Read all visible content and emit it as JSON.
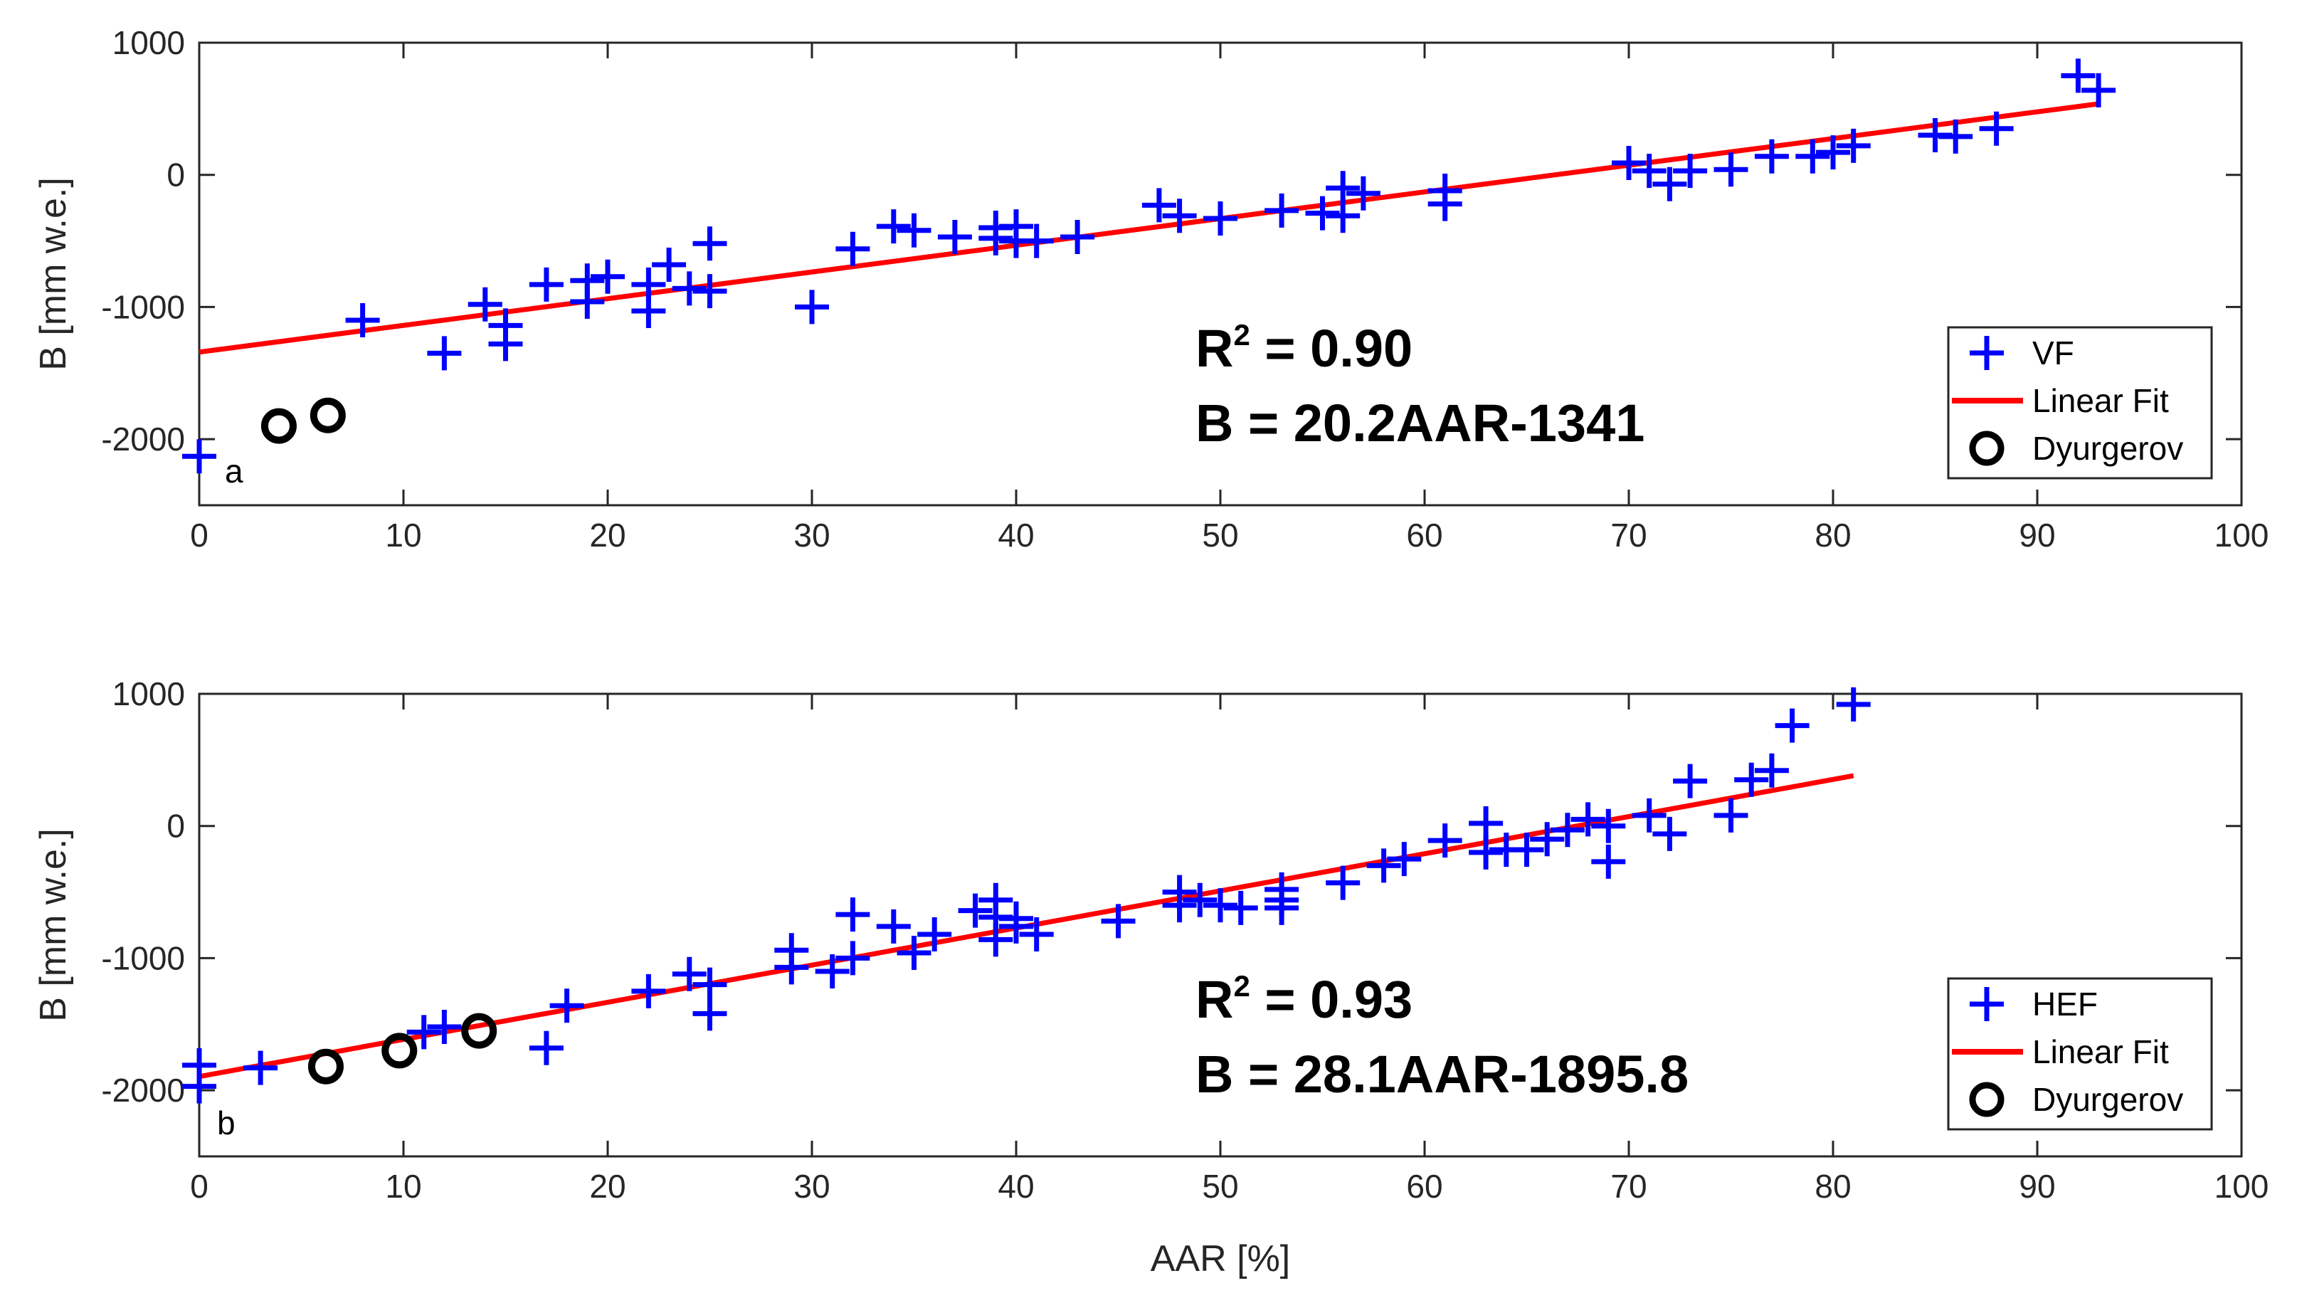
{
  "colors": {
    "data_marker": "#0000ff",
    "fit_line": "#ff0000",
    "reference_marker": "#000000",
    "axes": "#262626"
  },
  "chart_data": [
    {
      "id": "a",
      "type": "scatter",
      "panel_label": "a",
      "title": "",
      "xlabel": "",
      "ylabel": "B [mm w.e.]",
      "xlim": [
        0,
        100
      ],
      "ylim": [
        -2500,
        1000
      ],
      "xticks": [
        "0",
        "10",
        "20",
        "30",
        "40",
        "50",
        "60",
        "70",
        "80",
        "90",
        "100"
      ],
      "yticks": [
        "1000",
        "0",
        "-1000",
        "-2000"
      ],
      "grid": false,
      "legend_position": "bottom-right",
      "legend": [
        "VF",
        "Linear Fit",
        "Dyurgerov"
      ],
      "annotation": {
        "r_label": "R",
        "r_exp": "2",
        "r_value": " = 0.90",
        "equation": "B = 20.2AAR-1341"
      },
      "series": [
        {
          "name": "VF",
          "marker": "plus",
          "x": [
            0,
            8,
            12,
            14,
            15,
            15,
            17,
            19,
            19,
            20,
            22,
            22,
            23,
            24,
            25,
            25,
            30,
            32,
            34,
            35,
            37,
            39,
            39,
            40,
            40,
            41,
            43,
            47,
            48,
            50,
            53,
            55,
            56,
            56,
            57,
            61,
            61,
            70,
            71,
            72,
            73,
            75,
            77,
            79,
            80,
            81,
            85,
            86,
            88,
            92,
            93
          ],
          "y": [
            -2130,
            -1100,
            -1350,
            -980,
            -1140,
            -1280,
            -830,
            -960,
            -800,
            -770,
            -1030,
            -830,
            -680,
            -860,
            -880,
            -520,
            -1000,
            -560,
            -390,
            -420,
            -470,
            -400,
            -480,
            -390,
            -500,
            -500,
            -470,
            -230,
            -310,
            -330,
            -270,
            -290,
            -310,
            -100,
            -140,
            -120,
            -220,
            90,
            30,
            -70,
            30,
            40,
            140,
            140,
            170,
            220,
            300,
            290,
            350,
            750,
            640
          ]
        },
        {
          "name": "Linear Fit",
          "type": "line",
          "slope": 20.2,
          "intercept": -1341,
          "x": [
            0,
            93
          ]
        },
        {
          "name": "Dyurgerov",
          "marker": "circle",
          "x": [
            3.9,
            6.3
          ],
          "y": [
            -1900,
            -1820
          ]
        }
      ]
    },
    {
      "id": "b",
      "type": "scatter",
      "panel_label": "b",
      "title": "",
      "xlabel": "AAR [%]",
      "ylabel": "B [mm w.e.]",
      "xlim": [
        0,
        100
      ],
      "ylim": [
        -2500,
        1000
      ],
      "xticks": [
        "0",
        "10",
        "20",
        "30",
        "40",
        "50",
        "60",
        "70",
        "80",
        "90",
        "100"
      ],
      "yticks": [
        "1000",
        "0",
        "-1000",
        "-2000"
      ],
      "grid": false,
      "legend_position": "bottom-right",
      "legend": [
        "HEF",
        "Linear Fit",
        "Dyurgerov"
      ],
      "annotation": {
        "r_label": "R",
        "r_exp": "2",
        "r_value": " = 0.93",
        "equation": "B = 28.1AAR-1895.8"
      },
      "series": [
        {
          "name": "HEF",
          "marker": "plus",
          "x": [
            0,
            0,
            3,
            11,
            12,
            17,
            18,
            22,
            24,
            25,
            25,
            29,
            29,
            31,
            32,
            32,
            34,
            35,
            36,
            38,
            39,
            39,
            39,
            40,
            40,
            41,
            45,
            48,
            48,
            49,
            50,
            51,
            53,
            53,
            53,
            56,
            58,
            59,
            61,
            63,
            63,
            64,
            65,
            66,
            67,
            68,
            69,
            69,
            71,
            72,
            73,
            75,
            76,
            77,
            78,
            81
          ],
          "y": [
            -1810,
            -1970,
            -1830,
            -1560,
            -1520,
            -1680,
            -1360,
            -1250,
            -1120,
            -1200,
            -1420,
            -940,
            -1070,
            -1100,
            -670,
            -1000,
            -760,
            -960,
            -820,
            -640,
            -560,
            -860,
            -690,
            -700,
            -760,
            -820,
            -720,
            -500,
            -600,
            -560,
            -600,
            -620,
            -480,
            -560,
            -620,
            -430,
            -300,
            -250,
            -110,
            20,
            -200,
            -180,
            -180,
            -100,
            -30,
            50,
            0,
            -270,
            80,
            -60,
            340,
            80,
            350,
            420,
            760,
            920
          ]
        },
        {
          "name": "Linear Fit",
          "type": "line",
          "slope": 28.1,
          "intercept": -1895.8,
          "x": [
            0,
            81
          ]
        },
        {
          "name": "Dyurgerov",
          "marker": "circle",
          "x": [
            6.2,
            9.8,
            13.7
          ],
          "y": [
            -1820,
            -1700,
            -1550
          ]
        }
      ]
    }
  ]
}
